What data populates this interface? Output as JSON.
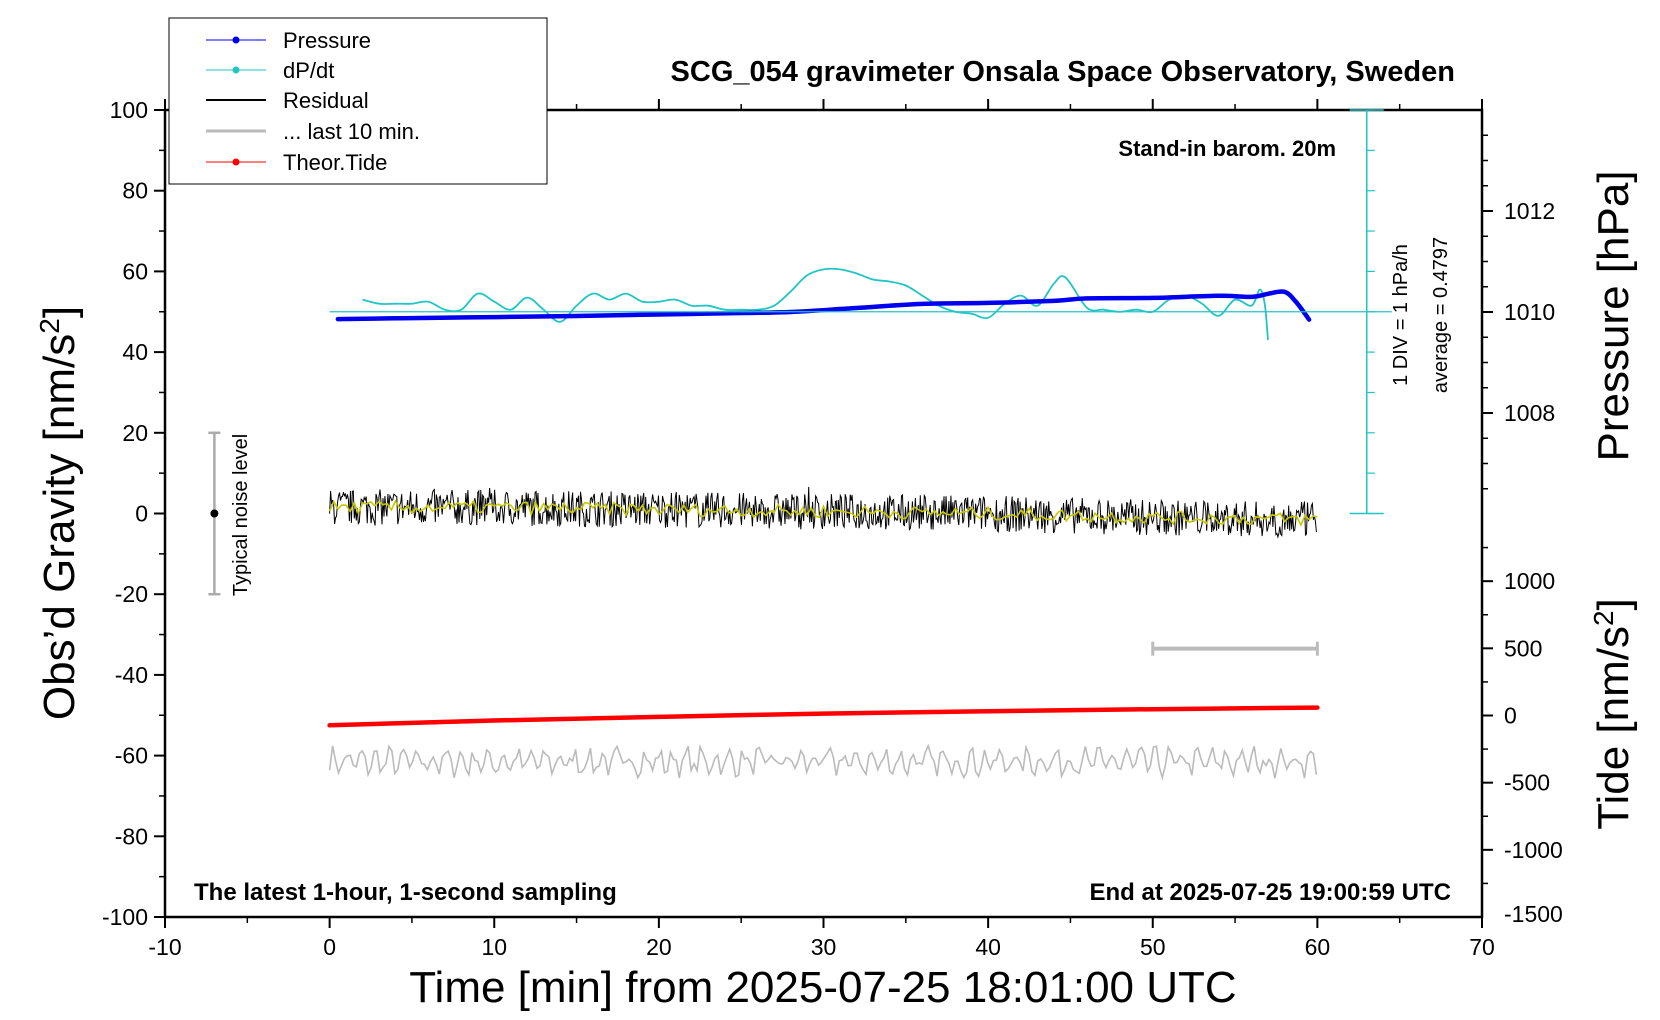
{
  "chart_data": {
    "type": "line",
    "title": "SCG_054 gravimeter Onsala Space Observatory, Sweden",
    "xlabel": "Time [min] from 2025-07-25 18:01:00 UTC",
    "ylabel_left": "Obs’d Gravity [nm/s",
    "ylabel_right_top": "Pressure [hPa]",
    "ylabel_right_bottom": "Tide [nm/s",
    "superscript": "2",
    "closing_bracket": "]",
    "xlim": [
      -10,
      70
    ],
    "ylim": [
      -100,
      100
    ],
    "pressure_lim": [
      1006,
      1014
    ],
    "tide_lim": [
      -1500,
      1500
    ],
    "x_ticks": [
      -10,
      0,
      10,
      20,
      30,
      40,
      50,
      60,
      70
    ],
    "y_ticks": [
      -100,
      -80,
      -60,
      -40,
      -20,
      0,
      20,
      40,
      60,
      80,
      100
    ],
    "pressure_ticks": [
      1008,
      1010,
      1012
    ],
    "tide_ticks": [
      -1500,
      -1000,
      -500,
      0,
      500,
      1000
    ],
    "annotations": {
      "barometer": "Stand-in barom. 20m",
      "div_label": "1 DIV = 1 hPa/h",
      "average_label": "average = 0.4797",
      "noise_label": "Typical noise level",
      "bottom_left": "The latest 1-hour, 1-second sampling",
      "bottom_right": "End at 2025-07-25 19:00:59 UTC"
    },
    "legend": {
      "placement": "top-left",
      "entries": [
        "Pressure",
        "dP/dt",
        "Residual",
        "... last 10 min.",
        "Theor.Tide"
      ]
    },
    "colors": {
      "pressure": "#0000ee",
      "dpdt": "#22c4c4",
      "residual": "#000000",
      "residual_smooth": "#c8c800",
      "last10": "#bbbbbb",
      "tide": "#ff0000"
    },
    "series": [
      {
        "name": "Pressure",
        "unit": "hPa",
        "x": [
          0.5,
          5,
          10,
          15,
          20,
          25,
          28,
          32,
          36,
          40,
          44,
          46,
          50,
          54,
          56,
          57,
          58,
          58.7,
          59.5
        ],
        "values": [
          1009.86,
          1009.88,
          1009.9,
          1009.92,
          1009.95,
          1009.98,
          1010.0,
          1010.08,
          1010.16,
          1010.18,
          1010.22,
          1010.27,
          1010.28,
          1010.32,
          1010.3,
          1010.36,
          1010.4,
          1010.2,
          1009.85
        ]
      },
      {
        "name": "dP/dt",
        "unit": "hPa/h",
        "x": [
          2,
          3,
          4,
          5,
          6,
          7,
          8,
          9,
          10,
          11,
          12,
          13,
          14,
          15,
          16,
          17,
          18,
          19,
          20,
          21,
          22,
          23,
          24,
          25,
          26,
          27,
          28,
          29,
          30,
          31,
          32,
          33,
          34,
          35,
          36,
          37,
          38,
          39,
          40,
          41,
          42,
          43,
          44,
          44.7,
          46,
          47,
          48,
          49,
          50,
          51,
          52,
          53,
          54,
          55,
          56,
          56.5,
          56.8,
          57
        ],
        "values": [
          0.3,
          0.2,
          0.2,
          0.2,
          0.25,
          0.05,
          0.05,
          0.45,
          0.25,
          0.05,
          0.35,
          0.05,
          -0.25,
          0.15,
          0.45,
          0.3,
          0.45,
          0.25,
          0.25,
          0.3,
          0.15,
          0.15,
          0.05,
          0.05,
          0.05,
          0.15,
          0.5,
          0.9,
          1.05,
          1.05,
          0.95,
          0.8,
          0.75,
          0.65,
          0.4,
          0.15,
          0.0,
          -0.05,
          -0.15,
          0.2,
          0.4,
          0.15,
          0.7,
          0.85,
          0.1,
          0.05,
          0.0,
          0.05,
          0.0,
          0.3,
          0.4,
          0.2,
          -0.1,
          0.3,
          0.15,
          0.55,
          0.2,
          -0.7
        ]
      },
      {
        "name": "Residual",
        "unit": "nm/s2",
        "x": [
          0,
          10,
          20,
          30,
          40,
          50,
          60
        ],
        "values": [
          1.5,
          1.5,
          1.0,
          0.5,
          0.0,
          -1.0,
          -1.5
        ]
      },
      {
        "name": "Theor.Tide",
        "unit": "nm/s2",
        "x": [
          0,
          10,
          20,
          30,
          40,
          50,
          60
        ],
        "values": [
          -52.5,
          -51.3,
          -50.4,
          -49.6,
          -49.0,
          -48.5,
          -48.1
        ]
      }
    ]
  }
}
